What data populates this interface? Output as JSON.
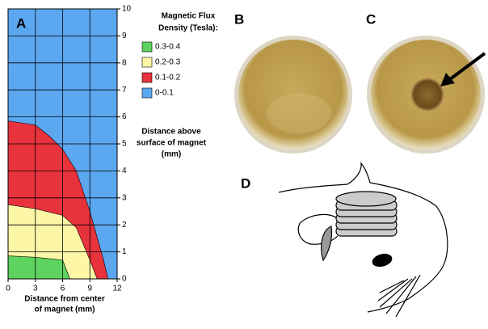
{
  "panel_labels": [
    "A",
    "B",
    "C",
    "D"
  ],
  "chart_data": {
    "type": "area",
    "xlabel": [
      "Distance from center",
      "of magnet (mm)"
    ],
    "ylabel": [
      "Distance above",
      "surface of magnet",
      "(mm)"
    ],
    "legend_title": [
      "Magnetic Flux",
      "Density (Tesla):"
    ],
    "xlim": [
      0,
      12
    ],
    "ylim": [
      0,
      10
    ],
    "xticks": [
      0,
      3,
      6,
      9,
      12
    ],
    "yticks": [
      0,
      1,
      2,
      3,
      4,
      5,
      6,
      7,
      8,
      9,
      10
    ],
    "grid": true,
    "series": [
      {
        "name": "0.3-0.4",
        "color": "#5fd35f",
        "x": [
          0,
          3,
          6,
          6.8
        ],
        "values": [
          0.85,
          0.8,
          0.7,
          0
        ]
      },
      {
        "name": "0.2-0.3",
        "color": "#fcf6a6",
        "x": [
          0,
          3,
          6,
          7.5,
          9,
          9.8
        ],
        "values": [
          2.75,
          2.6,
          2.35,
          1.9,
          0.7,
          0
        ]
      },
      {
        "name": "0.1-0.2",
        "color": "#e8323c",
        "x": [
          0,
          3,
          4.5,
          6,
          7.5,
          9,
          10.5,
          11
        ],
        "values": [
          5.85,
          5.7,
          5.3,
          4.8,
          4,
          2.5,
          0.7,
          0
        ]
      },
      {
        "name": "0-0.1",
        "color": "#5ba7f0",
        "x": [
          0,
          12
        ],
        "values": [
          10,
          10
        ]
      }
    ]
  }
}
